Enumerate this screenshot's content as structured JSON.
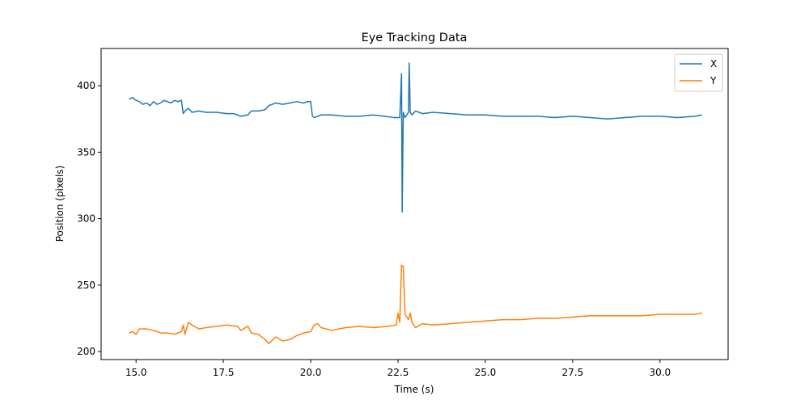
{
  "chart_data": {
    "type": "line",
    "title": "Eye Tracking Data",
    "xlabel": "Time (s)",
    "ylabel": "Position (pixels)",
    "xlim": [
      14.0,
      31.95
    ],
    "ylim": [
      194,
      428
    ],
    "x_ticks": [
      15.0,
      17.5,
      20.0,
      22.5,
      25.0,
      27.5,
      30.0
    ],
    "x_tick_labels": [
      "15.0",
      "17.5",
      "20.0",
      "22.5",
      "25.0",
      "27.5",
      "30.0"
    ],
    "y_ticks": [
      200,
      250,
      300,
      350,
      400
    ],
    "y_tick_labels": [
      "200",
      "250",
      "300",
      "350",
      "400"
    ],
    "grid": false,
    "legend_position": "top-right",
    "series": [
      {
        "name": "X",
        "color": "#1f77b4",
        "points": [
          [
            14.8,
            390
          ],
          [
            14.9,
            391
          ],
          [
            15.0,
            389
          ],
          [
            15.1,
            388
          ],
          [
            15.2,
            386
          ],
          [
            15.3,
            387
          ],
          [
            15.4,
            385
          ],
          [
            15.5,
            388
          ],
          [
            15.6,
            386
          ],
          [
            15.7,
            387
          ],
          [
            15.8,
            389
          ],
          [
            15.9,
            388
          ],
          [
            16.0,
            387
          ],
          [
            16.1,
            389
          ],
          [
            16.2,
            388
          ],
          [
            16.3,
            389
          ],
          [
            16.35,
            379
          ],
          [
            16.4,
            381
          ],
          [
            16.5,
            383
          ],
          [
            16.6,
            380
          ],
          [
            16.8,
            381
          ],
          [
            17.0,
            380
          ],
          [
            17.3,
            380
          ],
          [
            17.6,
            379
          ],
          [
            17.8,
            379
          ],
          [
            18.0,
            377
          ],
          [
            18.2,
            378
          ],
          [
            18.3,
            381
          ],
          [
            18.5,
            381
          ],
          [
            18.7,
            382
          ],
          [
            18.8,
            385
          ],
          [
            19.0,
            387
          ],
          [
            19.2,
            386
          ],
          [
            19.4,
            387
          ],
          [
            19.6,
            388
          ],
          [
            19.8,
            387
          ],
          [
            19.9,
            388
          ],
          [
            20.0,
            388
          ],
          [
            20.05,
            377
          ],
          [
            20.1,
            376
          ],
          [
            20.3,
            378
          ],
          [
            20.6,
            378
          ],
          [
            21.0,
            377
          ],
          [
            21.4,
            377
          ],
          [
            21.8,
            378
          ],
          [
            22.1,
            377
          ],
          [
            22.4,
            376
          ],
          [
            22.55,
            376
          ],
          [
            22.6,
            409
          ],
          [
            22.62,
            305
          ],
          [
            22.65,
            380
          ],
          [
            22.7,
            376
          ],
          [
            22.8,
            380
          ],
          [
            22.82,
            417
          ],
          [
            22.85,
            380
          ],
          [
            22.9,
            378
          ],
          [
            23.0,
            381
          ],
          [
            23.2,
            379
          ],
          [
            23.5,
            380
          ],
          [
            24.0,
            379
          ],
          [
            24.5,
            378
          ],
          [
            25.0,
            378
          ],
          [
            25.5,
            377
          ],
          [
            26.0,
            377
          ],
          [
            26.5,
            377
          ],
          [
            27.0,
            376
          ],
          [
            27.5,
            377
          ],
          [
            28.0,
            376
          ],
          [
            28.5,
            375
          ],
          [
            29.0,
            376
          ],
          [
            29.5,
            377
          ],
          [
            30.0,
            377
          ],
          [
            30.5,
            376
          ],
          [
            31.0,
            377
          ],
          [
            31.2,
            378
          ]
        ]
      },
      {
        "name": "Y",
        "color": "#ff7f0e",
        "points": [
          [
            14.8,
            214
          ],
          [
            14.9,
            215
          ],
          [
            15.0,
            213
          ],
          [
            15.1,
            217
          ],
          [
            15.3,
            217
          ],
          [
            15.5,
            216
          ],
          [
            15.7,
            214
          ],
          [
            15.9,
            214
          ],
          [
            16.1,
            213
          ],
          [
            16.3,
            215
          ],
          [
            16.35,
            220
          ],
          [
            16.4,
            213
          ],
          [
            16.5,
            222
          ],
          [
            16.6,
            220
          ],
          [
            16.8,
            217
          ],
          [
            17.0,
            218
          ],
          [
            17.3,
            219
          ],
          [
            17.6,
            220
          ],
          [
            17.9,
            219
          ],
          [
            18.0,
            216
          ],
          [
            18.2,
            219
          ],
          [
            18.3,
            214
          ],
          [
            18.5,
            213
          ],
          [
            18.7,
            209
          ],
          [
            18.8,
            206
          ],
          [
            19.0,
            211
          ],
          [
            19.2,
            208
          ],
          [
            19.4,
            209
          ],
          [
            19.6,
            212
          ],
          [
            19.8,
            214
          ],
          [
            20.0,
            215
          ],
          [
            20.1,
            220
          ],
          [
            20.2,
            221
          ],
          [
            20.3,
            218
          ],
          [
            20.6,
            216
          ],
          [
            21.0,
            218
          ],
          [
            21.4,
            219
          ],
          [
            21.8,
            218
          ],
          [
            22.2,
            219
          ],
          [
            22.45,
            220
          ],
          [
            22.5,
            229
          ],
          [
            22.55,
            222
          ],
          [
            22.6,
            265
          ],
          [
            22.65,
            264
          ],
          [
            22.7,
            228
          ],
          [
            22.8,
            224
          ],
          [
            22.85,
            229
          ],
          [
            22.9,
            222
          ],
          [
            23.0,
            218
          ],
          [
            23.2,
            221
          ],
          [
            23.5,
            220
          ],
          [
            24.0,
            221
          ],
          [
            24.5,
            222
          ],
          [
            25.0,
            223
          ],
          [
            25.5,
            224
          ],
          [
            26.0,
            224
          ],
          [
            26.5,
            225
          ],
          [
            27.0,
            225
          ],
          [
            27.5,
            226
          ],
          [
            28.0,
            227
          ],
          [
            28.5,
            227
          ],
          [
            29.0,
            227
          ],
          [
            29.5,
            227
          ],
          [
            30.0,
            228
          ],
          [
            30.5,
            228
          ],
          [
            31.0,
            228
          ],
          [
            31.2,
            229
          ]
        ]
      }
    ]
  }
}
